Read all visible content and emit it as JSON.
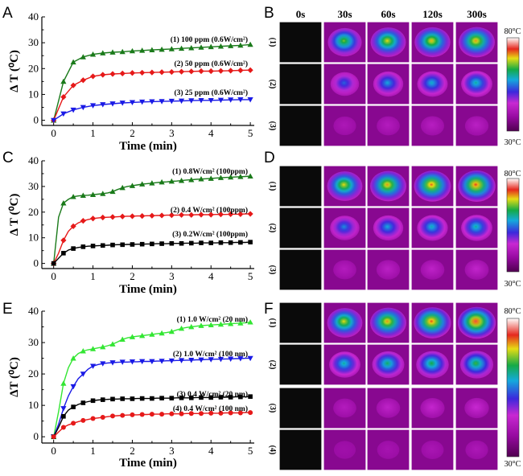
{
  "chart_data": [
    {
      "panel": "A",
      "type": "line",
      "xlabel": "Time (min)",
      "ylabel": "Δ T (⁰C)",
      "xlim": [
        -0.3,
        5.1
      ],
      "ylim": [
        -2,
        40
      ],
      "xticks": [
        0,
        1,
        2,
        3,
        4,
        5
      ],
      "yticks": [
        0,
        10,
        20,
        30,
        40
      ],
      "x": [
        0,
        0.25,
        0.5,
        0.75,
        1,
        1.25,
        1.5,
        1.75,
        2,
        2.25,
        2.5,
        2.75,
        3,
        3.25,
        3.5,
        3.75,
        4,
        4.25,
        4.5,
        4.75,
        5
      ],
      "series": [
        {
          "name": "(1) 100 ppm (0.6W/cm²)",
          "color": "#1a7a1a",
          "marker": "triangle-up",
          "values": [
            0,
            15,
            22.5,
            24.5,
            25.5,
            26,
            26.3,
            26.5,
            26.8,
            27,
            27.2,
            27.4,
            27.6,
            27.8,
            28,
            28.2,
            28.4,
            28.6,
            28.8,
            29,
            29.3
          ]
        },
        {
          "name": "(2) 50 ppm (0.6W/cm²)",
          "color": "#e61919",
          "marker": "diamond",
          "values": [
            0,
            9,
            13.5,
            15.5,
            17,
            17.6,
            17.9,
            18.1,
            18.3,
            18.4,
            18.5,
            18.6,
            18.7,
            18.8,
            18.9,
            19,
            19,
            19.1,
            19.2,
            19.3,
            19.4
          ]
        },
        {
          "name": "(3) 25 ppm (0.6W/cm²)",
          "color": "#1a1ae6",
          "marker": "triangle-down",
          "values": [
            0,
            2.5,
            4,
            5,
            5.7,
            6.1,
            6.4,
            6.7,
            6.9,
            7.1,
            7.2,
            7.3,
            7.4,
            7.5,
            7.6,
            7.7,
            7.7,
            7.8,
            7.9,
            8,
            8
          ]
        }
      ]
    },
    {
      "panel": "C",
      "type": "line",
      "xlabel": "Time (min)",
      "ylabel": "Δ T (⁰C)",
      "xlim": [
        -0.3,
        5.1
      ],
      "ylim": [
        -2,
        40
      ],
      "xticks": [
        0,
        1,
        2,
        3,
        4,
        5
      ],
      "yticks": [
        0,
        10,
        20,
        30,
        40
      ],
      "x": [
        0,
        0.125,
        0.25,
        0.375,
        0.5,
        0.625,
        0.75,
        0.875,
        1,
        1.125,
        1.25,
        1.375,
        1.5,
        1.625,
        1.75,
        1.875,
        2,
        2.125,
        2.25,
        2.375,
        2.5,
        2.625,
        2.75,
        2.875,
        3,
        3.125,
        3.25,
        3.375,
        3.5,
        3.625,
        3.75,
        3.875,
        4,
        4.125,
        4.25,
        4.375,
        4.5,
        4.625,
        4.75,
        4.875,
        5
      ],
      "series": [
        {
          "name": "(1) 0.8W/cm² (100ppm)",
          "color": "#1a7a1a",
          "marker": "triangle-up",
          "values": [
            0,
            18,
            23.5,
            25,
            26,
            26.3,
            26.5,
            26.6,
            26.8,
            27,
            27.2,
            27.5,
            28,
            28.8,
            29.5,
            30,
            30.3,
            30.6,
            30.9,
            31.1,
            31.3,
            31.5,
            31.7,
            31.8,
            32,
            32.1,
            32.3,
            32.5,
            32.6,
            32.8,
            32.9,
            33,
            33.1,
            33.3,
            33.4,
            33.5,
            33.6,
            33.7,
            33.8,
            33.9,
            34
          ]
        },
        {
          "name": "(2) 0.4 W/cm² (100ppm)",
          "color": "#e61919",
          "marker": "diamond",
          "values": [
            0,
            4,
            9,
            12.5,
            14.5,
            15.8,
            16.6,
            17.1,
            17.5,
            17.7,
            17.9,
            18,
            18.1,
            18.2,
            18.3,
            18.4,
            18.4,
            18.5,
            18.5,
            18.6,
            18.6,
            18.7,
            18.7,
            18.8,
            18.8,
            18.8,
            18.9,
            18.9,
            18.9,
            19,
            19,
            19,
            19,
            19.1,
            19.1,
            19.1,
            19.2,
            19.2,
            19.2,
            19.3,
            19.3
          ]
        },
        {
          "name": "(3) 0.2W/cm² (100ppm)",
          "color": "#000000",
          "marker": "square",
          "values": [
            0,
            2,
            4,
            5.2,
            5.8,
            6.2,
            6.5,
            6.7,
            6.8,
            6.9,
            7,
            7.1,
            7.2,
            7.3,
            7.3,
            7.4,
            7.4,
            7.5,
            7.5,
            7.6,
            7.6,
            7.7,
            7.7,
            7.7,
            7.8,
            7.8,
            7.8,
            7.9,
            7.9,
            7.9,
            8,
            8,
            8,
            8,
            8.1,
            8.1,
            8.1,
            8.2,
            8.2,
            8.2,
            8.3
          ]
        }
      ]
    },
    {
      "panel": "E",
      "type": "line",
      "xlabel": "Time (min)",
      "ylabel": "ΔT (⁰C)",
      "xlim": [
        -0.3,
        5.1
      ],
      "ylim": [
        -2,
        40
      ],
      "xticks": [
        0,
        1,
        2,
        3,
        4,
        5
      ],
      "yticks": [
        0,
        10,
        20,
        30,
        40
      ],
      "x": [
        0,
        0.125,
        0.25,
        0.375,
        0.5,
        0.625,
        0.75,
        0.875,
        1,
        1.125,
        1.25,
        1.375,
        1.5,
        1.625,
        1.75,
        1.875,
        2,
        2.125,
        2.25,
        2.375,
        2.5,
        2.625,
        2.75,
        2.875,
        3,
        3.125,
        3.25,
        3.375,
        3.5,
        3.625,
        3.75,
        3.875,
        4,
        4.125,
        4.25,
        4.375,
        4.5,
        4.625,
        4.75,
        4.875,
        5
      ],
      "series": [
        {
          "name": "(1) 1.0 W/cm² (20 nm)",
          "color": "#33e633",
          "marker": "triangle-up",
          "values": [
            0,
            8,
            17,
            22,
            25,
            26.5,
            27.3,
            27.7,
            28,
            28.3,
            28.6,
            29,
            29.5,
            30.2,
            31,
            31.5,
            31.8,
            32,
            32.2,
            32.4,
            32.6,
            32.8,
            33,
            33.2,
            33.5,
            34,
            34.5,
            34.8,
            35,
            35.2,
            35.4,
            35.5,
            35.6,
            35.7,
            35.8,
            35.9,
            36,
            36.1,
            36.2,
            36.3,
            36.5
          ]
        },
        {
          "name": "(2) 1.0 W/cm² (100 nm)",
          "color": "#1a1ae6",
          "marker": "triangle-down",
          "values": [
            0,
            4,
            9,
            13,
            16,
            18.5,
            20,
            21.5,
            22.5,
            23,
            23.3,
            23.5,
            23.6,
            23.7,
            23.8,
            23.8,
            23.9,
            23.9,
            24,
            24,
            24,
            24.1,
            24.1,
            24.2,
            24.2,
            24.3,
            24.3,
            24.4,
            24.4,
            24.5,
            24.5,
            24.6,
            24.6,
            24.7,
            24.7,
            24.8,
            24.8,
            24.9,
            24.9,
            25,
            25
          ]
        },
        {
          "name": "(3) 0.4 W/cm² (20 nm)",
          "color": "#000000",
          "marker": "square",
          "values": [
            0,
            3,
            6.5,
            8.5,
            9.5,
            10.3,
            10.8,
            11.2,
            11.5,
            11.7,
            11.8,
            11.9,
            12,
            12,
            12.1,
            12.1,
            12.1,
            12.2,
            12.2,
            12.2,
            12.2,
            12.3,
            12.3,
            12.3,
            12.3,
            12.4,
            12.4,
            12.4,
            12.4,
            12.5,
            12.5,
            12.5,
            12.5,
            12.6,
            12.6,
            12.6,
            12.6,
            12.7,
            12.7,
            12.7,
            12.8
          ]
        },
        {
          "name": "(4) 0.4 W/cm² (100 nm)",
          "color": "#e61919",
          "marker": "circle",
          "values": [
            0,
            1.5,
            3,
            3.8,
            4.3,
            4.8,
            5.2,
            5.5,
            5.8,
            6,
            6.2,
            6.4,
            6.6,
            6.7,
            6.8,
            6.9,
            7,
            7,
            7.1,
            7.1,
            7.2,
            7.2,
            7.2,
            7.3,
            7.3,
            7.3,
            7.3,
            7.4,
            7.4,
            7.4,
            7.4,
            7.5,
            7.5,
            7.5,
            7.5,
            7.6,
            7.6,
            7.6,
            7.6,
            7.7,
            7.7
          ]
        }
      ]
    }
  ],
  "thermal_panels": [
    {
      "panel": "B",
      "column_labels": [
        "0s",
        "30s",
        "60s",
        "120s",
        "300s"
      ],
      "rows": [
        {
          "label": "(1)",
          "peak": [
            0,
            0.72,
            0.78,
            0.8,
            0.82
          ]
        },
        {
          "label": "(2)",
          "peak": [
            0,
            0.48,
            0.55,
            0.57,
            0.6
          ]
        },
        {
          "label": "(3)",
          "peak": [
            0,
            0.22,
            0.24,
            0.25,
            0.26
          ]
        }
      ],
      "colorbar": {
        "max_label": "80°C",
        "min_label": "30°C"
      }
    },
    {
      "panel": "D",
      "rows": [
        {
          "label": "(1)",
          "peak": [
            0,
            0.78,
            0.82,
            0.85,
            0.87
          ]
        },
        {
          "label": "(2)",
          "peak": [
            0,
            0.52,
            0.55,
            0.58,
            0.6
          ]
        },
        {
          "label": "(3)",
          "peak": [
            0,
            0.24,
            0.26,
            0.27,
            0.28
          ]
        }
      ],
      "colorbar": {
        "max_label": "80°C",
        "min_label": "30°C"
      }
    },
    {
      "panel": "F",
      "rows": [
        {
          "label": "(1)",
          "peak": [
            0,
            0.78,
            0.82,
            0.86,
            0.9
          ]
        },
        {
          "label": "(2)",
          "peak": [
            0,
            0.6,
            0.64,
            0.66,
            0.68
          ]
        },
        {
          "label": "(3)",
          "peak": [
            0,
            0.24,
            0.27,
            0.29,
            0.3
          ]
        },
        {
          "label": "(4)",
          "peak": [
            0,
            0.18,
            0.2,
            0.21,
            0.22
          ]
        }
      ],
      "colorbar": {
        "max_label": "80°C",
        "min_label": "30°C"
      }
    }
  ],
  "panel_letters": {
    "A": "A",
    "B": "B",
    "C": "C",
    "D": "D",
    "E": "E",
    "F": "F"
  }
}
